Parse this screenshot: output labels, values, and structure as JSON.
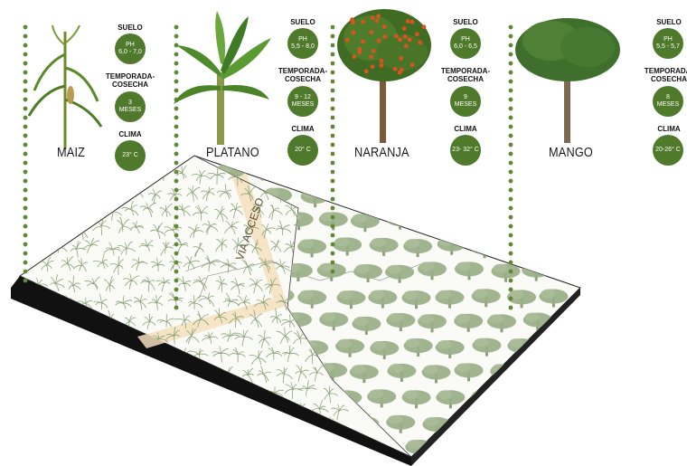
{
  "crops": [
    {
      "name": "MAIZ",
      "suelo_label": "SUELO",
      "suelo_value": [
        "PH",
        "6,0 - 7,0"
      ],
      "temporada_label": [
        "TEMPORADA-",
        "COSECHA"
      ],
      "temporada_value": [
        "3",
        "MESES"
      ],
      "clima_label": "CLIMA",
      "clima_value": "23° C"
    },
    {
      "name": "PLATANO",
      "suelo_label": "SUELO",
      "suelo_value": [
        "PH",
        "5,5 - 8,0"
      ],
      "temporada_label": [
        "TEMPORADA-",
        "COSECHA"
      ],
      "temporada_value": [
        "9 - 12",
        "MESES"
      ],
      "clima_label": "CLIMA",
      "clima_value": "20° C"
    },
    {
      "name": "NARANJA",
      "suelo_label": "SUELO",
      "suelo_value": [
        "PH",
        "6,0 - 6,5"
      ],
      "temporada_label": [
        "TEMPORADA-",
        "COSECHA"
      ],
      "temporada_value": [
        "9",
        "MESES"
      ],
      "clima_label": "CLIMA",
      "clima_value": "23- 32° C"
    },
    {
      "name": "MANGO",
      "suelo_label": "SUELO",
      "suelo_value": [
        "PH",
        "5,5 - 5,7"
      ],
      "temporada_label": [
        "TEMPORADA-",
        "COSECHA"
      ],
      "temporada_value": [
        "8",
        "MESES"
      ],
      "clima_label": "CLIMA",
      "clima_value": "20-26° C"
    }
  ],
  "access_road": "VIA ACCESO",
  "colors": {
    "disc": "#4f7a2c",
    "dots": "#5e8a36",
    "tree_canopy": "#9bb08a",
    "road": "#f3dfbd",
    "slab_edge": "#111111"
  }
}
